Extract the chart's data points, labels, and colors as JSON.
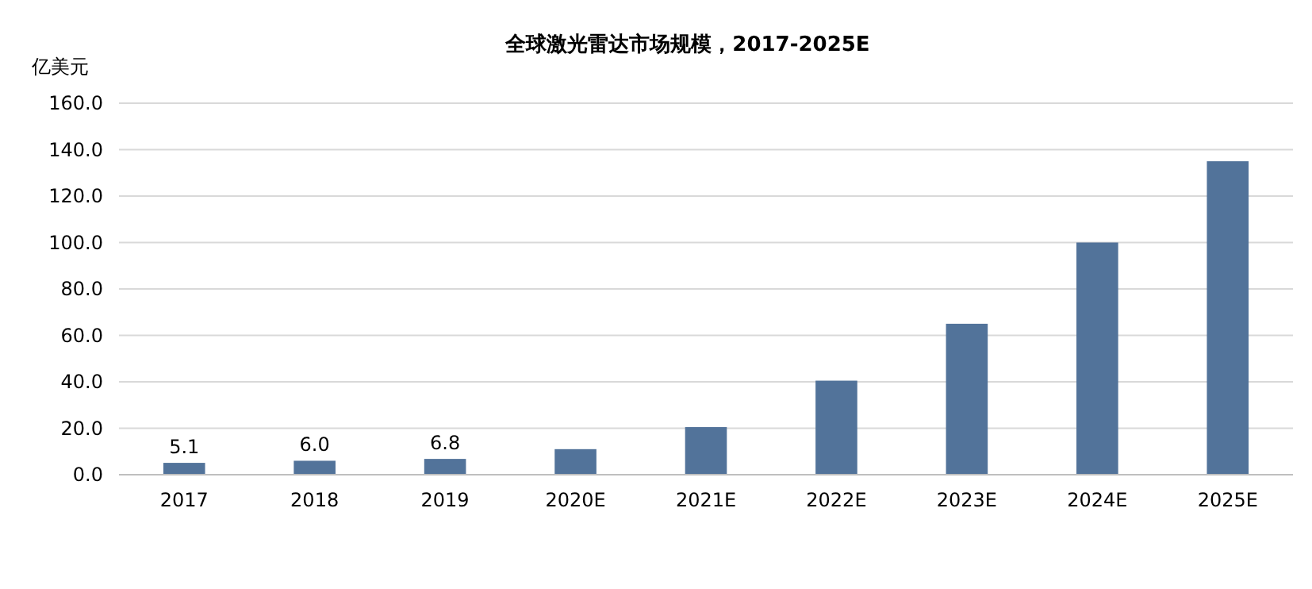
{
  "chart_data": {
    "type": "bar",
    "title": "全球激光雷达市场规模，2017-2025E",
    "ylabel": "亿美元",
    "categories": [
      "2017",
      "2018",
      "2019",
      "2020E",
      "2021E",
      "2022E",
      "2023E",
      "2024E",
      "2025E"
    ],
    "values": [
      5.1,
      6.0,
      6.8,
      11,
      20.5,
      40.5,
      65,
      100,
      135
    ],
    "value_labels": [
      "5.1",
      "6.0",
      "6.8",
      null,
      null,
      null,
      null,
      null,
      null
    ],
    "color": "#52739a",
    "ylim": [
      0,
      160
    ],
    "yticks": [
      {
        "value": 0,
        "label": "0.0"
      },
      {
        "value": 20,
        "label": "20.0"
      },
      {
        "value": 40,
        "label": "40.0"
      },
      {
        "value": 60,
        "label": "60.0"
      },
      {
        "value": 80,
        "label": "80.0"
      },
      {
        "value": 100,
        "label": "100.0"
      },
      {
        "value": 120,
        "label": "120.0"
      },
      {
        "value": 140,
        "label": "140.0"
      },
      {
        "value": 160,
        "label": "160.0"
      }
    ],
    "grid": true
  }
}
